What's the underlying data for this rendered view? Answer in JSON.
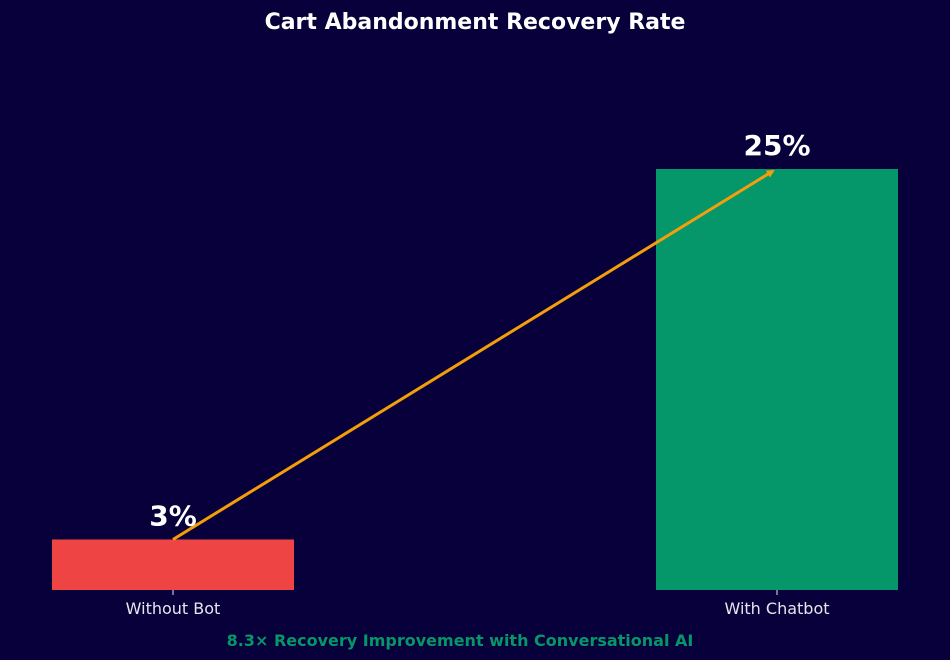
{
  "chart_data": {
    "type": "bar",
    "title": "Cart Abandonment Recovery Rate",
    "categories": [
      "Without Bot",
      "With Chatbot"
    ],
    "values": [
      3,
      25
    ],
    "value_labels": [
      "3%",
      "25%"
    ],
    "unit": "%",
    "ylim": [
      0,
      25
    ],
    "grid": false,
    "legend": "none",
    "bar_colors": [
      "#ef4444",
      "#059669"
    ],
    "arrow_color": "#f59e0b",
    "background": "#07003a",
    "annotation": "8.3× Recovery Improvement with Conversational AI"
  }
}
